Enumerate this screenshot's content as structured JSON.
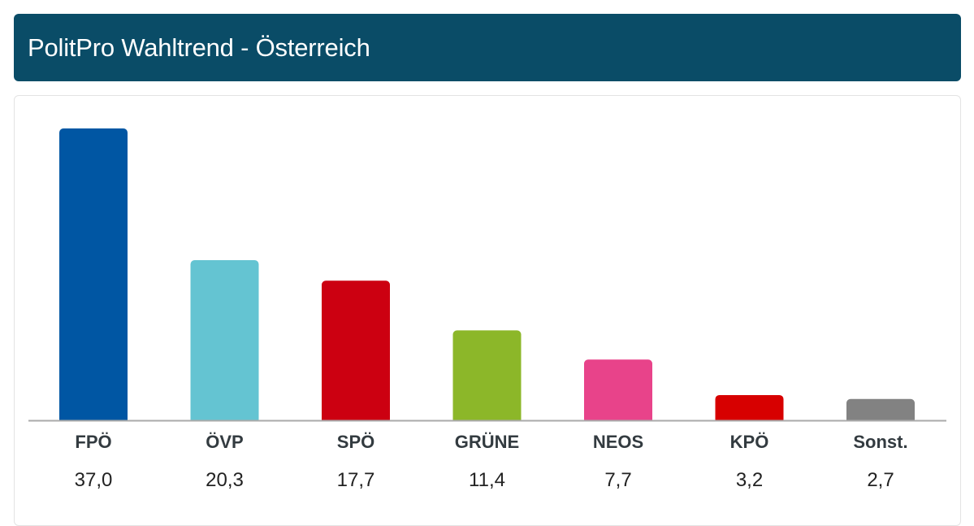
{
  "header": {
    "title": "PolitPro Wahltrend - Österreich"
  },
  "chart_data": {
    "type": "bar",
    "categories": [
      "FPÖ",
      "ÖVP",
      "SPÖ",
      "GRÜNE",
      "NEOS",
      "KPÖ",
      "Sonst."
    ],
    "values": [
      37.0,
      20.3,
      17.7,
      11.4,
      7.7,
      3.2,
      2.7
    ],
    "value_labels": [
      "37,0",
      "20,3",
      "17,7",
      "11,4",
      "7,7",
      "3,2",
      "2,7"
    ],
    "colors": [
      "#0056a3",
      "#64c4d2",
      "#cc0011",
      "#8cb729",
      "#e8438a",
      "#d70000",
      "#828282"
    ],
    "ylim": [
      0,
      37.0
    ],
    "grid": false,
    "legend": "none"
  },
  "colors": {
    "header_bg": "#0a4c67",
    "header_text": "#ffffff",
    "axis_line": "#aaaaaa"
  }
}
